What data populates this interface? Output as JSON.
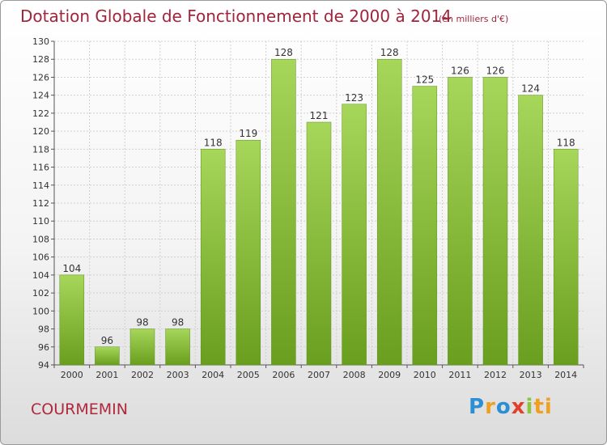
{
  "header": {
    "title": "Dotation Globale de Fonctionnement de 2000 à 2014",
    "subtitle": "(en milliers d'€)"
  },
  "footer": {
    "commune": "COURMEMIN",
    "logo": "Proxiti"
  },
  "colors": {
    "bar_light": "#a6d65a",
    "bar_dark": "#6a9e1e",
    "title": "#a0253c"
  },
  "chart_data": {
    "type": "bar",
    "categories": [
      "2000",
      "2001",
      "2002",
      "2003",
      "2004",
      "2005",
      "2006",
      "2007",
      "2008",
      "2009",
      "2010",
      "2011",
      "2012",
      "2013",
      "2014"
    ],
    "values": [
      104,
      96,
      98,
      98,
      118,
      119,
      128,
      121,
      123,
      128,
      125,
      126,
      126,
      124,
      118
    ],
    "title": "Dotation Globale de Fonctionnement de 2000 à 2014",
    "subtitle": "(en milliers d'€)",
    "ylim": [
      94,
      130
    ],
    "yticks": [
      94,
      96,
      98,
      100,
      102,
      104,
      106,
      108,
      110,
      112,
      114,
      116,
      118,
      120,
      122,
      124,
      126,
      128,
      130
    ],
    "grid": true,
    "legend": "none",
    "data_labels": true
  }
}
